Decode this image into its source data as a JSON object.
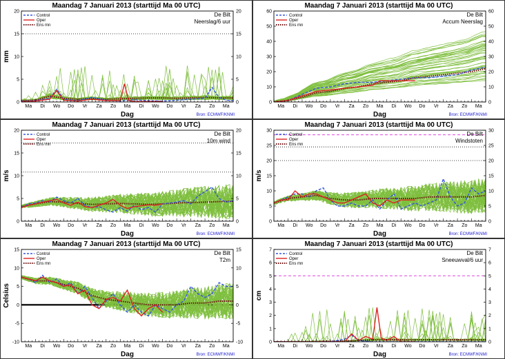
{
  "page": {
    "source": "Bron: ECMWF/KNMI",
    "xlabel": "Dag",
    "day_labels": [
      "Ma",
      "Di",
      "Wo",
      "Do",
      "Vr",
      "Za",
      "Zo",
      "Ma",
      "Di",
      "Wo",
      "Do",
      "Vr",
      "Za",
      "Zo",
      "Ma"
    ],
    "legend": [
      {
        "name": "Control",
        "color": "#3355dd",
        "style": "dashed"
      },
      {
        "name": "Oper",
        "color": "#dd2222",
        "style": "solid"
      },
      {
        "name": "Ens mn",
        "color": "#6b0d0d",
        "style": "dotted"
      }
    ],
    "ensemble_color": "#7fbf3f"
  },
  "chart_data": [
    {
      "type": "line",
      "title": "Maandag   7 Januari  2013  (starttijd  Ma 00 UTC)",
      "station": "De Bilt",
      "variable": "Neerslag/6 uur",
      "ylabel": "mm",
      "ylim": [
        0,
        20
      ],
      "yticks": [
        0,
        5,
        10,
        15,
        20
      ],
      "grid_lines": [
        {
          "y": 15,
          "color": "#000",
          "style": "dotted"
        }
      ],
      "x_days": [
        0,
        15
      ],
      "series": [
        {
          "name": "Control",
          "x": [
            0,
            1,
            2,
            2.5,
            3,
            4,
            5,
            6,
            7,
            8,
            9,
            10,
            11,
            12,
            13,
            13.5,
            14,
            14.5,
            15
          ],
          "y": [
            0.2,
            0.3,
            0.8,
            2.8,
            0.6,
            0.3,
            1.0,
            0.4,
            0.2,
            0.5,
            0.3,
            0.2,
            0.4,
            0.6,
            0.8,
            3.2,
            1.0,
            0.4,
            0.3
          ]
        },
        {
          "name": "Oper",
          "x": [
            0,
            1,
            2,
            2.5,
            3,
            4,
            5,
            6,
            7,
            7.3,
            7.6,
            8,
            9,
            10
          ],
          "y": [
            0.1,
            0.2,
            0.6,
            2.5,
            0.4,
            0.2,
            0.6,
            0.3,
            0.3,
            4.0,
            0.3,
            0.1,
            0.1,
            0.1
          ]
        },
        {
          "name": "Ens mn",
          "x": [
            0,
            1,
            2,
            3,
            4,
            5,
            6,
            7,
            8,
            9,
            10,
            11,
            12,
            13,
            14,
            15
          ],
          "y": [
            0.3,
            0.4,
            1.3,
            0.8,
            0.6,
            0.8,
            0.6,
            0.7,
            0.8,
            0.9,
            0.9,
            0.8,
            0.9,
            1.0,
            0.9,
            0.9
          ]
        }
      ]
    },
    {
      "type": "line",
      "title": "Maandag   7 Januari  2013  (starttijd  Ma 00 UTC)",
      "station": "De Bilt",
      "variable": "Accum Neerslag",
      "ylabel": "",
      "ylim": [
        0,
        60
      ],
      "yticks": [
        0,
        10,
        20,
        30,
        40,
        50,
        60
      ],
      "grid_lines": [],
      "x_days": [
        0,
        15
      ],
      "series": [
        {
          "name": "Control",
          "x": [
            0,
            1,
            2,
            3,
            4,
            5,
            6,
            7,
            8,
            9,
            10,
            11,
            12,
            13,
            14,
            15
          ],
          "y": [
            0,
            1,
            5,
            9,
            10,
            12,
            13,
            13,
            14,
            15,
            16,
            16,
            17,
            18,
            21,
            23
          ]
        },
        {
          "name": "Oper",
          "x": [
            0,
            1,
            2,
            3,
            4,
            5,
            6,
            7,
            7.5,
            8,
            9,
            10
          ],
          "y": [
            0,
            1,
            4,
            7,
            8,
            9,
            10,
            11,
            14,
            14,
            14,
            14
          ]
        },
        {
          "name": "Ens mn",
          "x": [
            0,
            1,
            2,
            3,
            4,
            5,
            6,
            7,
            8,
            9,
            10,
            11,
            12,
            13,
            14,
            15
          ],
          "y": [
            0,
            1,
            3,
            6,
            7,
            9,
            10,
            12,
            13,
            14,
            16,
            17,
            18,
            19,
            20,
            22
          ]
        }
      ]
    },
    {
      "type": "line",
      "title": "Maandag   7 Januari  2013  (starttijd  Ma 00 UTC)",
      "station": "De Bilt",
      "variable": "10m wind",
      "ylabel": "m/s",
      "ylim": [
        0,
        20
      ],
      "yticks": [
        0,
        5,
        10,
        15,
        20
      ],
      "grid_lines": [
        {
          "y": 17.2,
          "color": "#000",
          "style": "dotted"
        },
        {
          "y": 10.8,
          "color": "#000",
          "style": "dotted"
        }
      ],
      "x_days": [
        0,
        15
      ],
      "series": [
        {
          "name": "Control",
          "x": [
            0,
            0.5,
            1,
            1.5,
            2,
            2.5,
            3,
            3.5,
            4,
            4.5,
            5,
            5.5,
            6,
            6.5,
            7,
            7.5,
            8,
            8.5,
            9,
            9.5,
            10,
            10.5,
            11,
            11.5,
            12,
            12.5,
            13,
            13.5,
            14,
            14.5,
            15
          ],
          "y": [
            3,
            3.8,
            4,
            4.5,
            4.2,
            5.3,
            4.5,
            4,
            5,
            3.5,
            3,
            3.2,
            2.5,
            2,
            3,
            2.2,
            3.5,
            2.5,
            3,
            2,
            3.8,
            4,
            4.2,
            4.5,
            3.8,
            5.5,
            6.5,
            7.5,
            5,
            4.2,
            4.5
          ]
        },
        {
          "name": "Oper",
          "x": [
            0,
            0.5,
            1,
            1.5,
            2,
            2.5,
            3,
            3.5,
            4,
            4.5,
            5,
            5.5,
            6,
            6.5,
            7,
            7.5,
            8,
            8.5,
            9,
            9.5,
            10
          ],
          "y": [
            3,
            3.5,
            3.8,
            4.2,
            4.5,
            4.8,
            4,
            3.5,
            4.2,
            3.2,
            3,
            3.5,
            4,
            4.8,
            3.5,
            2.8,
            3.2,
            3.4,
            3.6,
            3.5,
            3.8
          ]
        },
        {
          "name": "Ens mn",
          "x": [
            0,
            1,
            2,
            3,
            4,
            5,
            6,
            7,
            8,
            9,
            10,
            11,
            12,
            13,
            14,
            15
          ],
          "y": [
            3.2,
            3.8,
            4.3,
            4.2,
            3.9,
            3.7,
            3.8,
            3.9,
            3.8,
            3.7,
            3.8,
            4,
            4.1,
            4.2,
            4.3,
            4.4
          ]
        }
      ]
    },
    {
      "type": "line",
      "title": "Maandag   7 Januari  2013  (starttijd  Ma 00 UTC)",
      "station": "De Bilt",
      "variable": "Windstoten",
      "ylabel": "m/s",
      "ylim": [
        0,
        30
      ],
      "yticks": [
        0,
        5,
        10,
        15,
        20,
        25,
        30
      ],
      "grid_lines": [
        {
          "y": 28.5,
          "color": "#e040e0",
          "style": "dashed"
        },
        {
          "y": 24.5,
          "color": "#000",
          "style": "dotted"
        },
        {
          "y": 20,
          "color": "#000",
          "style": "dotted"
        }
      ],
      "x_days": [
        0,
        15
      ],
      "series": [
        {
          "name": "Control",
          "x": [
            0,
            0.5,
            1,
            1.5,
            2,
            2.5,
            3,
            3.5,
            4,
            4.5,
            5,
            5.5,
            6,
            6.5,
            7,
            7.5,
            8,
            8.5,
            9,
            9.5,
            10,
            10.5,
            11,
            11.5,
            12,
            12.5,
            13,
            13.5,
            14,
            14.5,
            15
          ],
          "y": [
            6,
            7,
            8,
            9,
            9,
            8,
            10,
            11,
            7,
            5,
            5,
            6,
            5,
            5,
            7,
            4,
            7,
            9,
            4,
            5,
            6,
            5,
            6,
            7,
            14,
            8,
            5,
            6,
            11,
            9,
            10
          ]
        },
        {
          "name": "Oper",
          "x": [
            0,
            0.5,
            1,
            1.5,
            2,
            2.5,
            3,
            3.5,
            4,
            4.5,
            5,
            5.5,
            6,
            6.5,
            7,
            7.5,
            8,
            8.5,
            9,
            9.5,
            10
          ],
          "y": [
            6,
            7,
            7,
            10,
            8,
            9,
            9,
            8,
            7,
            6,
            6,
            7,
            8,
            9,
            6,
            5,
            7,
            6,
            7,
            7,
            7
          ]
        },
        {
          "name": "Ens mn",
          "x": [
            0,
            1,
            2,
            3,
            4,
            5,
            6,
            7,
            8,
            9,
            10,
            11,
            12,
            13,
            14,
            15
          ],
          "y": [
            6,
            7.5,
            8,
            8.5,
            7.5,
            7,
            7,
            7.5,
            7.5,
            7.5,
            7.5,
            8,
            8,
            8,
            8,
            8.5
          ]
        }
      ]
    },
    {
      "type": "line",
      "title": "Maandag   7 Januari  2013  (starttijd  Ma 00 UTC)",
      "station": "De Bilt",
      "variable": "T2m",
      "ylabel": "Celsius",
      "ylim": [
        -10,
        15
      ],
      "yticks": [
        -10,
        -5,
        0,
        5,
        10,
        15
      ],
      "grid_lines": [
        {
          "y": 0,
          "color": "#000",
          "style": "solid-thick"
        }
      ],
      "x_days": [
        0,
        15
      ],
      "series": [
        {
          "name": "Control",
          "x": [
            0,
            0.5,
            1,
            1.5,
            2,
            2.5,
            3,
            3.5,
            4,
            4.5,
            5,
            5.5,
            6,
            6.5,
            7,
            7.5,
            8,
            8.5,
            9,
            9.5,
            10,
            10.5,
            11,
            11.5,
            12,
            12.5,
            13,
            13.5,
            14,
            14.5,
            15
          ],
          "y": [
            7.5,
            7,
            6,
            8,
            6,
            7,
            5,
            6,
            3,
            5,
            2,
            -1,
            1,
            3,
            0,
            -2,
            0,
            -2,
            -3,
            0,
            -1,
            -2,
            0,
            1,
            5,
            3,
            2,
            3,
            6,
            5,
            5
          ]
        },
        {
          "name": "Oper",
          "x": [
            0,
            0.5,
            1,
            1.5,
            2,
            2.5,
            3,
            3.5,
            4,
            4.5,
            5,
            5.5,
            6,
            6.5,
            7,
            7.5,
            8,
            8.5,
            9,
            9.5,
            10
          ],
          "y": [
            7.5,
            7,
            6.5,
            7.5,
            6.5,
            6,
            5,
            5.5,
            3,
            4,
            0,
            -1,
            1.5,
            2,
            1,
            4,
            -1,
            -3,
            -1,
            0,
            -2
          ]
        },
        {
          "name": "Ens mn",
          "x": [
            0,
            1,
            2,
            3,
            4,
            5,
            6,
            7,
            8,
            9,
            10,
            11,
            12,
            13,
            14,
            15
          ],
          "y": [
            7.5,
            6.5,
            6.5,
            5.5,
            4.5,
            2.5,
            1.5,
            1,
            0.5,
            0,
            0,
            0,
            0.5,
            0.5,
            1,
            1
          ]
        }
      ]
    },
    {
      "type": "line",
      "title": "Maandag   7 Januari  2013  (starttijd  Ma 00 UTC)",
      "station": "De Bilt",
      "variable": "Sneeuwval/6 uur",
      "ylabel": "cm",
      "ylim": [
        0,
        7
      ],
      "yticks": [
        0,
        1,
        2,
        3,
        4,
        5,
        6,
        7
      ],
      "grid_lines": [
        {
          "y": 5,
          "color": "#e040e0",
          "style": "dashed"
        }
      ],
      "x_days": [
        0,
        15
      ],
      "series": [
        {
          "name": "Control",
          "x": [
            0,
            4,
            5,
            5.5,
            6,
            7,
            8,
            15
          ],
          "y": [
            0,
            0,
            0.2,
            0.5,
            0.1,
            0,
            0,
            0
          ]
        },
        {
          "name": "Oper",
          "x": [
            0,
            5,
            5.5,
            6,
            6.5,
            7,
            7.3,
            7.6,
            8,
            8.5,
            9,
            10
          ],
          "y": [
            0,
            0,
            0.6,
            0.1,
            0.4,
            0.2,
            2.6,
            0.3,
            0.1,
            0.4,
            0,
            0
          ]
        },
        {
          "name": "Ens mn",
          "x": [
            0,
            5,
            6,
            7,
            8,
            9,
            10,
            11,
            12,
            13,
            14,
            15
          ],
          "y": [
            0,
            0.05,
            0.1,
            0.15,
            0.15,
            0.15,
            0.15,
            0.15,
            0.15,
            0.15,
            0.15,
            0.15
          ]
        }
      ]
    }
  ]
}
